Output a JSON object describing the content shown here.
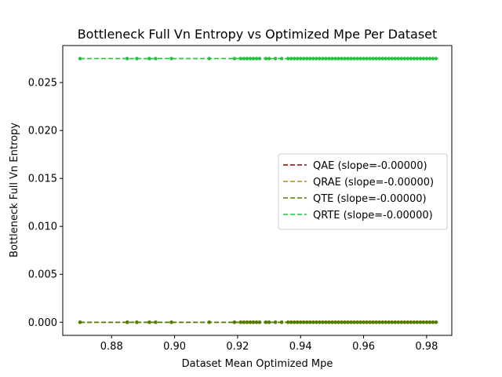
{
  "chart_data": {
    "type": "scatter",
    "title": "Bottleneck Full Vn Entropy vs Optimized Mpe Per Dataset",
    "xlabel": "Dataset Mean Optimized Mpe",
    "ylabel": "Bottleneck Full Vn Entropy",
    "xlim": [
      0.8645,
      0.988
    ],
    "ylim": [
      -0.00137,
      0.02886
    ],
    "xticks": [
      "0.88",
      "0.90",
      "0.92",
      "0.94",
      "0.96",
      "0.98"
    ],
    "xtick_values": [
      0.88,
      0.9,
      0.92,
      0.94,
      0.96,
      0.98
    ],
    "yticks": [
      "0.000",
      "0.005",
      "0.010",
      "0.015",
      "0.020",
      "0.025"
    ],
    "ytick_values": [
      0.0,
      0.005,
      0.01,
      0.015,
      0.02,
      0.025
    ],
    "grid": false,
    "legend_placement": "center-right",
    "x": [
      0.87,
      0.885,
      0.888,
      0.892,
      0.894,
      0.899,
      0.911,
      0.919,
      0.921,
      0.922,
      0.923,
      0.924,
      0.925,
      0.926,
      0.927,
      0.929,
      0.93,
      0.932,
      0.934,
      0.936,
      0.937,
      0.938,
      0.939,
      0.94,
      0.941,
      0.942,
      0.943,
      0.944,
      0.945,
      0.946,
      0.947,
      0.948,
      0.949,
      0.95,
      0.951,
      0.952,
      0.953,
      0.954,
      0.955,
      0.956,
      0.957,
      0.958,
      0.959,
      0.96,
      0.961,
      0.962,
      0.963,
      0.964,
      0.965,
      0.966,
      0.967,
      0.968,
      0.969,
      0.97,
      0.971,
      0.972,
      0.973,
      0.974,
      0.975,
      0.976,
      0.977,
      0.978,
      0.979,
      0.98,
      0.981,
      0.982,
      0.983
    ],
    "series": [
      {
        "name": "QAE (slope=-0.00000)",
        "color": "#8b0000",
        "y": 0.0
      },
      {
        "name": "QRAE (slope=-0.00000)",
        "color": "#b8860b",
        "y": 0.0
      },
      {
        "name": "QTE (slope=-0.00000)",
        "color": "#4f7f00",
        "y": 0.0
      },
      {
        "name": "QRTE (slope=-0.00000)",
        "color": "#1fc33a",
        "y": 0.0275
      }
    ]
  }
}
